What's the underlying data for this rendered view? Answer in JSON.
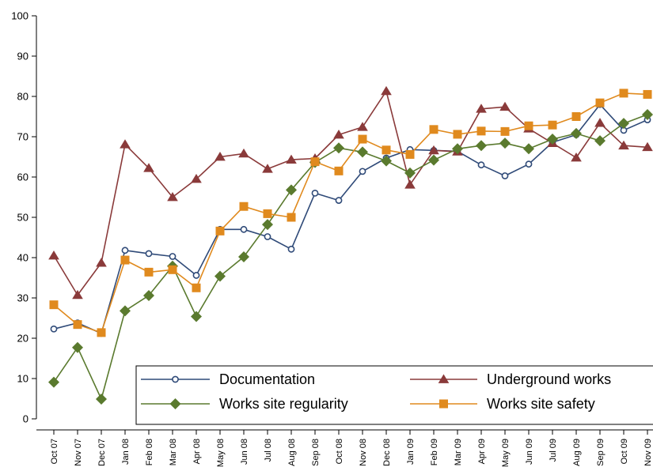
{
  "chart_data": {
    "type": "line",
    "categories": [
      "Oct 07",
      "Nov 07",
      "Dec 07",
      "Jan 08",
      "Feb 08",
      "Mar 08",
      "Apr 08",
      "May 08",
      "Jun 08",
      "Jul 08",
      "Aug 08",
      "Sep 08",
      "Oct 08",
      "Nov 08",
      "Dec 08",
      "Jan 09",
      "Feb 09",
      "Mar 09",
      "Apr 09",
      "May 09",
      "Jun 09",
      "Jul 09",
      "Aug 09",
      "Sep 09",
      "Oct 09",
      "Nov 09"
    ],
    "ylim": [
      0,
      100
    ],
    "yticks": [
      0,
      10,
      20,
      30,
      40,
      50,
      60,
      70,
      80,
      90,
      100
    ],
    "grid": false,
    "legend_position": "bottom-right",
    "series": [
      {
        "name": "Documentation",
        "color": "#2f4a78",
        "marker": "hollow-circle",
        "values": [
          22.3,
          23.8,
          21.2,
          41.8,
          41.0,
          40.3,
          35.6,
          47.0,
          47.0,
          45.2,
          42.1,
          56.0,
          54.2,
          61.4,
          64.7,
          66.8,
          66.6,
          66.4,
          63.0,
          60.3,
          63.2,
          68.6,
          70.5,
          78.0,
          71.6,
          74.2
        ]
      },
      {
        "name": "Underground works",
        "color": "#8a3a3a",
        "marker": "triangle",
        "values": [
          40.5,
          30.7,
          38.7,
          68.1,
          62.2,
          55.0,
          59.5,
          65.0,
          65.8,
          62.0,
          64.3,
          64.6,
          70.5,
          72.4,
          81.3,
          58.1,
          66.6,
          66.3,
          76.9,
          77.4,
          72.0,
          68.4,
          64.8,
          73.4,
          67.8,
          67.4
        ]
      },
      {
        "name": "Works site regularity",
        "color": "#5a7a2e",
        "marker": "diamond",
        "values": [
          9.1,
          17.7,
          4.9,
          26.8,
          30.6,
          37.9,
          25.4,
          35.4,
          40.2,
          48.2,
          56.8,
          63.6,
          67.2,
          66.2,
          64.0,
          61.0,
          64.2,
          67.0,
          67.8,
          68.4,
          67.0,
          69.4,
          70.8,
          69.0,
          73.3,
          75.5
        ]
      },
      {
        "name": "Works site safety",
        "color": "#e08a1e",
        "marker": "square",
        "values": [
          28.3,
          23.4,
          21.4,
          39.4,
          36.4,
          37.0,
          32.5,
          46.6,
          52.7,
          50.9,
          50.0,
          63.8,
          61.5,
          69.4,
          66.7,
          65.6,
          71.8,
          70.6,
          71.4,
          71.3,
          72.7,
          72.9,
          75.0,
          78.4,
          80.8,
          80.5
        ]
      }
    ]
  }
}
